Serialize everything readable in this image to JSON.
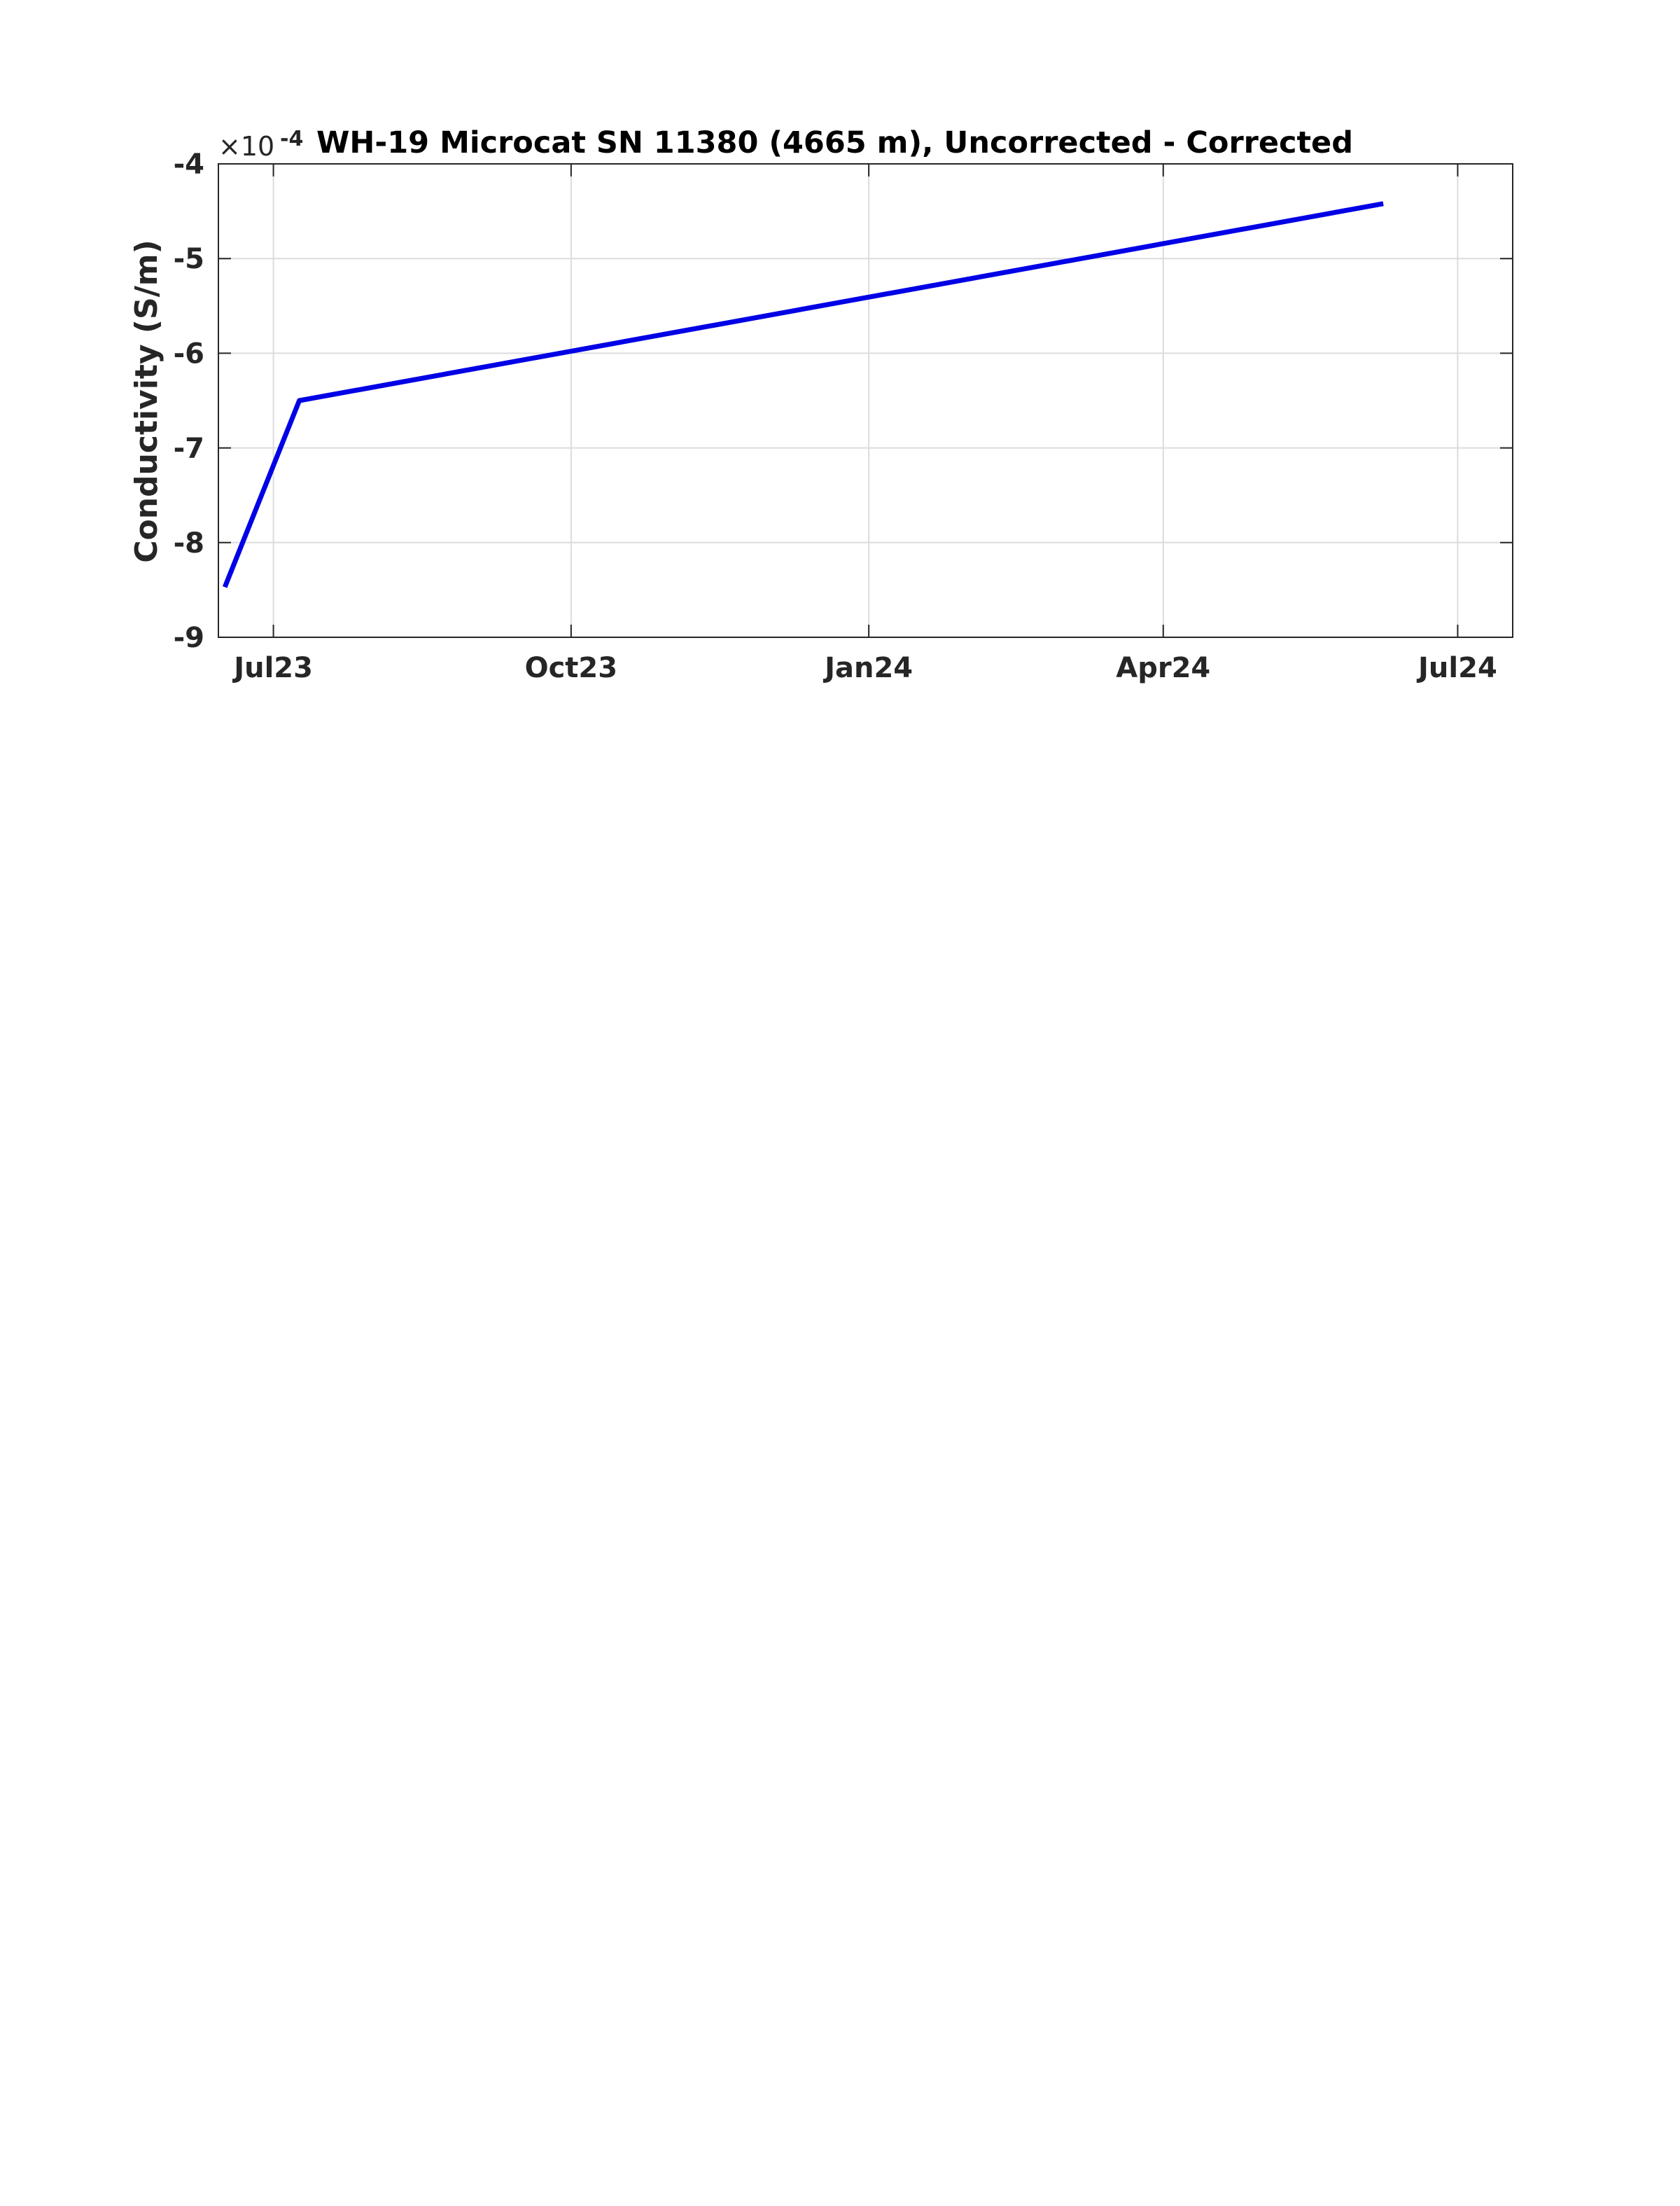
{
  "chart_data": {
    "type": "line",
    "title": "WH-19 Microcat SN 11380 (4665 m), Uncorrected - Corrected",
    "xlabel": "",
    "ylabel": "Conductivity (S/m)",
    "y_exponent_label": {
      "prefix": "×10",
      "exponent": "-4"
    },
    "xlim": [
      "2023-06-14",
      "2024-07-18"
    ],
    "ylim": [
      -9,
      -4
    ],
    "y_ticks": [
      -9,
      -8,
      -7,
      -6,
      -5,
      -4
    ],
    "y_tick_labels": [
      "-9",
      "-8",
      "-7",
      "-6",
      "-5",
      "-4"
    ],
    "x_ticks": [
      {
        "date": "2023-07-01",
        "label": "Jul23"
      },
      {
        "date": "2023-10-01",
        "label": "Oct23"
      },
      {
        "date": "2024-01-01",
        "label": "Jan24"
      },
      {
        "date": "2024-04-01",
        "label": "Apr24"
      },
      {
        "date": "2024-07-01",
        "label": "Jul24"
      }
    ],
    "grid": true,
    "series": [
      {
        "color": "#0000e6",
        "x": [
          "2023-06-16",
          "2023-07-09",
          "2024-06-08"
        ],
        "y": [
          -8.47,
          -6.5,
          -4.42
        ]
      }
    ]
  }
}
